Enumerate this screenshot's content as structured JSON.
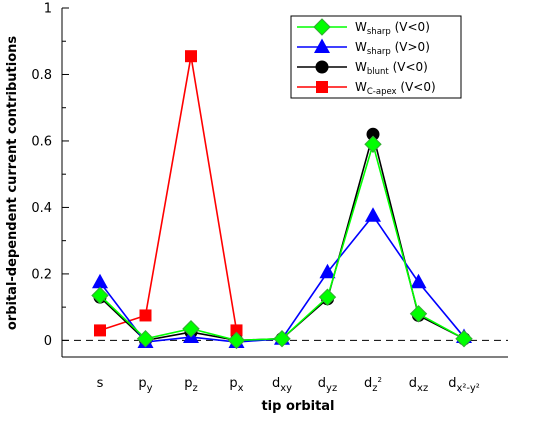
{
  "chart_data": {
    "type": "line",
    "xlabel": "tip orbital",
    "ylabel": "orbital-dependent current contributions",
    "ylim": [
      -0.05,
      1.0
    ],
    "yticks": [
      0,
      0.2,
      0.4,
      0.6,
      0.8,
      1
    ],
    "ytick_labels": [
      "0",
      "0.2",
      "0.4",
      "0.6",
      "0.8",
      "1"
    ],
    "categories": [
      {
        "base": "s",
        "sub": "",
        "sup": ""
      },
      {
        "base": "p",
        "sub": "y",
        "sup": ""
      },
      {
        "base": "p",
        "sub": "z",
        "sup": ""
      },
      {
        "base": "p",
        "sub": "x",
        "sup": ""
      },
      {
        "base": "d",
        "sub": "xy",
        "sup": ""
      },
      {
        "base": "d",
        "sub": "yz",
        "sup": ""
      },
      {
        "base": "d",
        "sub": "z",
        "sup": "2"
      },
      {
        "base": "d",
        "sub": "xz",
        "sup": ""
      },
      {
        "base": "d",
        "sub": "x²-y²",
        "sup": ""
      }
    ],
    "reference_line": {
      "y": 0,
      "style": "dashed"
    },
    "legend": {
      "position": "top-right"
    },
    "grid": false,
    "series": [
      {
        "name": "W",
        "name_sub": "C-apex",
        "condition": "(V<0)",
        "color": "#ff0000",
        "marker": "square",
        "points": [
          [
            0,
            0.03
          ],
          [
            1,
            0.075
          ],
          [
            2,
            0.855
          ],
          [
            3,
            0.03
          ]
        ]
      },
      {
        "name": "W",
        "name_sub": "blunt",
        "condition": "(V<0)",
        "color": "#000000",
        "marker": "circle",
        "points": [
          [
            0,
            0.13
          ],
          [
            1,
            0.0
          ],
          [
            2,
            0.025
          ],
          [
            3,
            0.0
          ],
          [
            4,
            0.005
          ],
          [
            5,
            0.125
          ],
          [
            6,
            0.62
          ],
          [
            7,
            0.075
          ],
          [
            8,
            0.005
          ]
        ]
      },
      {
        "name": "W",
        "name_sub": "sharp",
        "condition": "(V>0)",
        "color": "#0000ff",
        "marker": "triangle",
        "points": [
          [
            0,
            0.175
          ],
          [
            1,
            -0.005
          ],
          [
            2,
            0.01
          ],
          [
            3,
            -0.005
          ],
          [
            4,
            0.005
          ],
          [
            5,
            0.205
          ],
          [
            6,
            0.375
          ],
          [
            7,
            0.175
          ],
          [
            8,
            0.01
          ]
        ]
      },
      {
        "name": "W",
        "name_sub": "sharp",
        "condition": "(V<0)",
        "color": "#00ff00",
        "marker": "diamond",
        "points": [
          [
            0,
            0.135
          ],
          [
            1,
            0.005
          ],
          [
            2,
            0.035
          ],
          [
            3,
            0.0
          ],
          [
            4,
            0.005
          ],
          [
            5,
            0.13
          ],
          [
            6,
            0.59
          ],
          [
            7,
            0.08
          ],
          [
            8,
            0.005
          ]
        ]
      }
    ],
    "legend_order": [
      3,
      2,
      1,
      0
    ]
  }
}
